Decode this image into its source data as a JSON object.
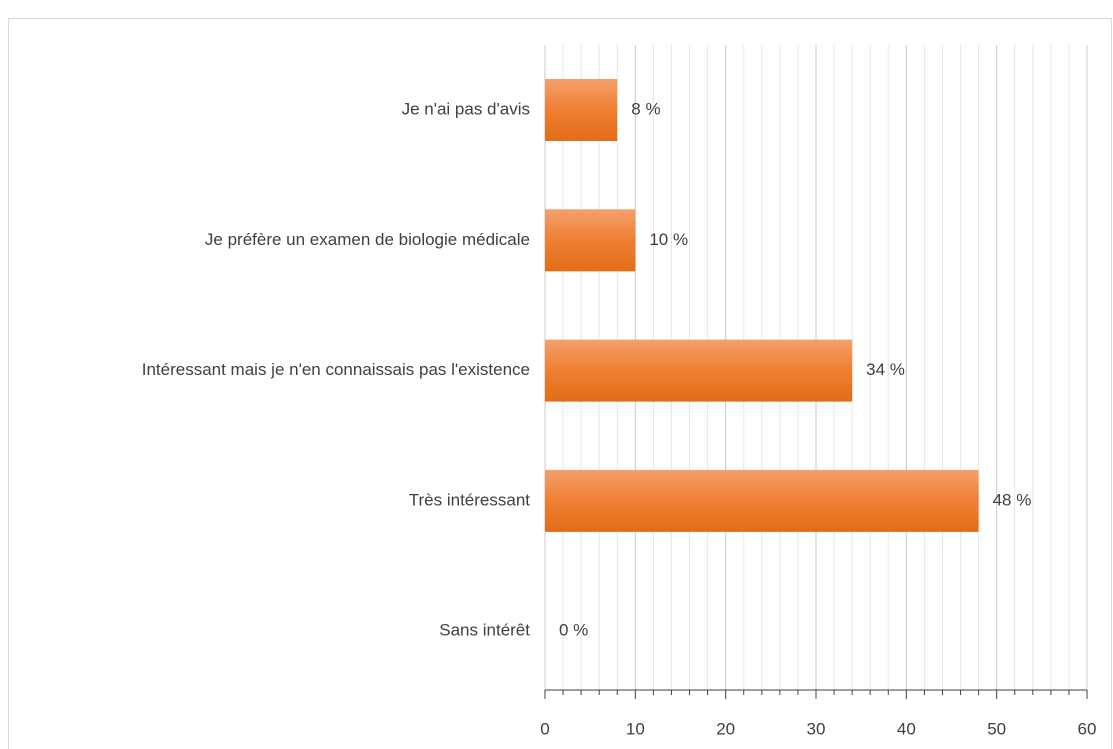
{
  "chart_data": {
    "type": "hbar",
    "categories": [
      "Je n'ai pas d'avis",
      "Je préfère un examen de biologie médicale",
      "Intéressant mais je n'en connaissais pas l'existence",
      "Très intéressant",
      "Sans intérêt"
    ],
    "values": [
      8,
      10,
      34,
      48,
      0
    ],
    "value_labels": [
      "8 %",
      "10 %",
      "34 %",
      "48 %",
      "0 %"
    ],
    "color": "#ed7d31",
    "xlim": [
      0,
      60
    ],
    "xticks": [
      0,
      10,
      20,
      30,
      40,
      50,
      60
    ],
    "minor_xticks": [
      2,
      4,
      6,
      8,
      12,
      14,
      16,
      18,
      22,
      24,
      26,
      28,
      32,
      34,
      36,
      38,
      42,
      44,
      46,
      48,
      52,
      54,
      56,
      58
    ],
    "grid": true
  }
}
